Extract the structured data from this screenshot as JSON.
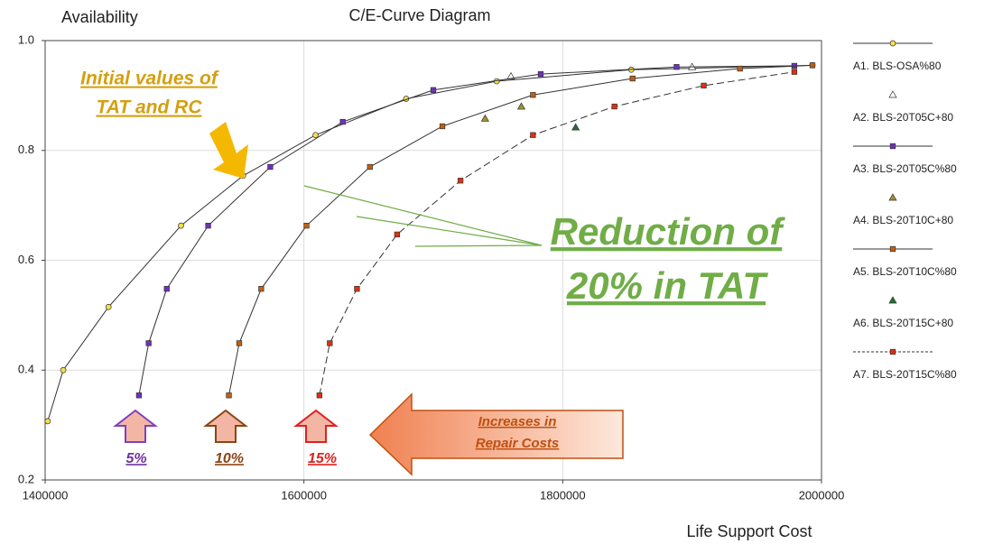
{
  "chart_data": {
    "type": "line",
    "title": "C/E-Curve Diagram",
    "y_label": "Availability",
    "x_label": "Life Support Cost",
    "xlim": [
      1400000,
      2000000
    ],
    "xticks": [
      1400000,
      1600000,
      1800000,
      2000000
    ],
    "ylim": [
      0.2,
      1.0
    ],
    "yticks": [
      {
        "value": 0.2,
        "label": "0.2"
      },
      0.4,
      0.6,
      0.8,
      {
        "value": 1.0,
        "label": "1.0"
      }
    ],
    "grid": true,
    "legend": "right",
    "series": [
      {
        "name": "A1. BLS-OSA%80",
        "color": "#f5e04a",
        "marker": "circle",
        "line": "solid",
        "x": [
          1402000,
          1414000,
          1449000,
          1505000,
          1553000,
          1609000,
          1679000,
          1749000,
          1853000,
          1993000
        ],
        "values": [
          0.307,
          0.4,
          0.515,
          0.663,
          0.754,
          0.828,
          0.894,
          0.926,
          0.947,
          0.955
        ]
      },
      {
        "name": "A2. BLS-20T05C+80",
        "color": "#ffffff",
        "marker": "triangle",
        "line": "none",
        "x": [
          1760000,
          1900000
        ],
        "values": [
          0.935,
          0.952
        ]
      },
      {
        "name": "A3. BLS-20T05C%80",
        "color": "#7030c0",
        "marker": "square",
        "line": "solid",
        "x": [
          1472500,
          1480000,
          1494000,
          1526000,
          1574000,
          1630000,
          1700000,
          1783000,
          1888000,
          1979000
        ],
        "values": [
          0.354,
          0.449,
          0.548,
          0.663,
          0.77,
          0.852,
          0.91,
          0.939,
          0.952,
          0.954
        ]
      },
      {
        "name": "A4. BLS-20T10C+80",
        "color": "#a09030",
        "marker": "triangle",
        "line": "none",
        "x": [
          1768000,
          1740000
        ],
        "values": [
          0.88,
          0.858
        ]
      },
      {
        "name": "A5. BLS-20T10C%80",
        "color": "#c06010",
        "marker": "square",
        "line": "solid",
        "x": [
          1542000,
          1550000,
          1567000,
          1602000,
          1651000,
          1707000,
          1777000,
          1854000,
          1937000,
          1993000
        ],
        "values": [
          0.354,
          0.449,
          0.548,
          0.663,
          0.77,
          0.844,
          0.901,
          0.931,
          0.949,
          0.955
        ]
      },
      {
        "name": "A6. BLS-20T15C+80",
        "color": "#207030",
        "marker": "triangle",
        "line": "none",
        "x": [
          1810000
        ],
        "values": [
          0.842
        ]
      },
      {
        "name": "A7. BLS-20T15C%80",
        "color": "#e03010",
        "marker": "square",
        "line": "dashed",
        "x": [
          1612000,
          1620000,
          1641000,
          1672000,
          1721000,
          1777000,
          1840000,
          1909000,
          1979000
        ],
        "values": [
          0.354,
          0.449,
          0.548,
          0.647,
          0.745,
          0.828,
          0.88,
          0.918,
          0.943
        ]
      }
    ],
    "annotations": [
      {
        "lines": [
          "Initial values of",
          "TAT and RC"
        ],
        "color": "#d4a010"
      },
      {
        "lines": [
          "Reduction of",
          "20% in TAT"
        ],
        "color": "#70ad47"
      },
      {
        "lines": [
          "Increases in",
          "Repair Costs"
        ],
        "color": "#c05010"
      },
      {
        "lines": [
          "5%"
        ],
        "color": "#7030a0"
      },
      {
        "lines": [
          "10%"
        ],
        "color": "#8b4513"
      },
      {
        "lines": [
          "15%"
        ],
        "color": "#e02020"
      }
    ]
  }
}
